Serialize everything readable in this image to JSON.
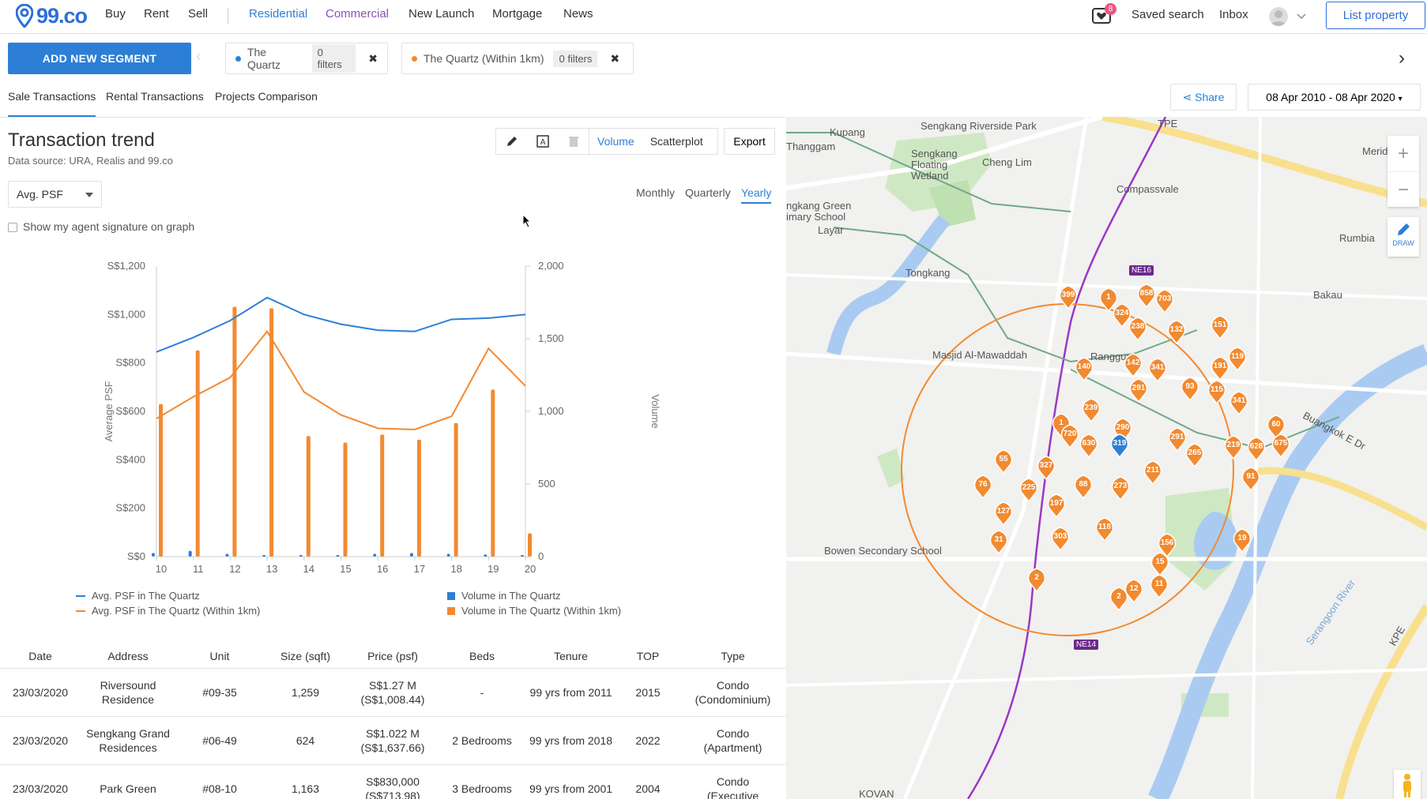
{
  "brand": {
    "name": "99.co",
    "color": "#2d6fd9"
  },
  "nav": {
    "left": [
      "Buy",
      "Rent",
      "Sell"
    ],
    "categories": [
      "Residential",
      "Commercial",
      "New Launch",
      "Mortgage",
      "News"
    ],
    "saved_badge": "8",
    "saved_search": "Saved search",
    "inbox": "Inbox",
    "list_property": "List property"
  },
  "segments": {
    "add_label": "ADD NEW SEGMENT",
    "items": [
      {
        "name": "The Quartz",
        "filters": "0 filters",
        "color": "#2d7fd6"
      },
      {
        "name": "The Quartz (Within 1km)",
        "filters": "0 filters",
        "color": "#f28a30"
      }
    ]
  },
  "tabs": [
    "Sale Transactions",
    "Rental Transactions",
    "Projects Comparison"
  ],
  "share_label": "Share",
  "date_range": "08 Apr 2010 - 08 Apr 2020",
  "panel": {
    "title": "Transaction trend",
    "source": "Data source: URA, Realis and 99.co",
    "view_modes": [
      "Volume",
      "Scatterplot"
    ],
    "export": "Export",
    "metric": "Avg. PSF",
    "periods": [
      "Monthly",
      "Quarterly",
      "Yearly"
    ],
    "signature_label": "Show my agent signature on graph"
  },
  "chart_data": {
    "type": "bar+line",
    "categories": [
      "10",
      "11",
      "12",
      "13",
      "14",
      "15",
      "16",
      "17",
      "18",
      "19",
      "20"
    ],
    "ylabel": "Average PSF",
    "y2label": "Volume",
    "ylim": [
      0,
      1200
    ],
    "y2lim": [
      0,
      2000
    ],
    "y_ticks": [
      "S$0",
      "S$200",
      "S$400",
      "S$600",
      "S$800",
      "S$1,000",
      "S$1,200"
    ],
    "y2_ticks": [
      "0",
      "500",
      "1,000",
      "1,500",
      "2,000"
    ],
    "series": [
      {
        "name": "Avg. PSF in The Quartz",
        "kind": "line",
        "axis": "left",
        "color": "#2d7fd6",
        "values": [
          845,
          905,
          975,
          1070,
          1000,
          960,
          935,
          930,
          980,
          985,
          1000
        ]
      },
      {
        "name": "Avg. PSF in The Quartz (Within 1km)",
        "kind": "line",
        "axis": "left",
        "color": "#f28a30",
        "values": [
          570,
          660,
          740,
          930,
          680,
          585,
          530,
          525,
          580,
          860,
          705
        ]
      },
      {
        "name": "Volume in The Quartz",
        "kind": "bar",
        "axis": "right",
        "color": "#2d7fd6",
        "values": [
          25,
          40,
          20,
          10,
          10,
          10,
          20,
          25,
          20,
          15,
          0
        ]
      },
      {
        "name": "Volume in The Quartz (Within 1km)",
        "kind": "bar",
        "axis": "right",
        "color": "#f28a30",
        "values": [
          1050,
          1420,
          1720,
          1710,
          830,
          785,
          840,
          805,
          920,
          1150,
          160
        ]
      }
    ]
  },
  "table": {
    "headers": [
      "Date",
      "Address",
      "Unit",
      "Size (sqft)",
      "Price (psf)",
      "Beds",
      "Tenure",
      "TOP",
      "Type"
    ],
    "rows": [
      {
        "date": "23/03/2020",
        "address_1": "Riversound",
        "address_2": "Residence",
        "unit": "#09-35",
        "size": "1,259",
        "price_1": "S$1.27 M",
        "price_2": "(S$1,008.44)",
        "beds": "-",
        "tenure": "99 yrs from 2011",
        "top": "2015",
        "type_1": "Condo",
        "type_2": "(Condominium)"
      },
      {
        "date": "23/03/2020",
        "address_1": "Sengkang Grand",
        "address_2": "Residences",
        "unit": "#06-49",
        "size": "624",
        "price_1": "S$1.022 M",
        "price_2": "(S$1,637.66)",
        "beds": "2 Bedrooms",
        "tenure": "99 yrs from 2018",
        "top": "2022",
        "type_1": "Condo",
        "type_2": "(Apartment)"
      },
      {
        "date": "23/03/2020",
        "address_1": "Park Green",
        "address_2": "",
        "unit": "#08-10",
        "size": "1,163",
        "price_1": "S$830,000",
        "price_2": "(S$713.98)",
        "beds": "3 Bedrooms",
        "tenure": "99 yrs from 2001",
        "top": "2004",
        "type_1": "Condo",
        "type_2": "(Executive"
      }
    ]
  },
  "map": {
    "labels": [
      {
        "text": "Sengkang Riverside Park"
      },
      {
        "text": "Kupang"
      },
      {
        "text": "Thanggam"
      },
      {
        "text": "Sengkang Floating Wetland"
      },
      {
        "text": "Cheng Lim"
      },
      {
        "text": "Compassvale"
      },
      {
        "text": "Meridian"
      },
      {
        "text": "ngkang Green imary School"
      },
      {
        "text": "Layar"
      },
      {
        "text": "Rumbia"
      },
      {
        "text": "Tongkang"
      },
      {
        "text": "Bakau"
      },
      {
        "text": "Masjid Al-Mawaddah"
      },
      {
        "text": "Ranggung"
      },
      {
        "text": "Buangkok E Dr"
      },
      {
        "text": "Bowen Secondary School"
      },
      {
        "text": "KPE"
      },
      {
        "text": "Serangoon River"
      },
      {
        "text": "TPE"
      },
      {
        "text": "KOVAN"
      }
    ],
    "station_labels": [
      "NE16",
      "NE14"
    ],
    "markers": [
      "399",
      "1",
      "858",
      "703",
      "324",
      "238",
      "132",
      "151",
      "140",
      "142",
      "341",
      "191",
      "119",
      "291",
      "93",
      "115",
      "341",
      "239",
      "1",
      "290",
      "720",
      "630",
      "319",
      "291",
      "60",
      "675",
      "219",
      "628",
      "265",
      "55",
      "327",
      "211",
      "91",
      "76",
      "225",
      "88",
      "273",
      "197",
      "127",
      "303",
      "118",
      "31",
      "156",
      "19",
      "15",
      "2",
      "12",
      "11",
      "2"
    ],
    "draw_label": "DRAW"
  }
}
